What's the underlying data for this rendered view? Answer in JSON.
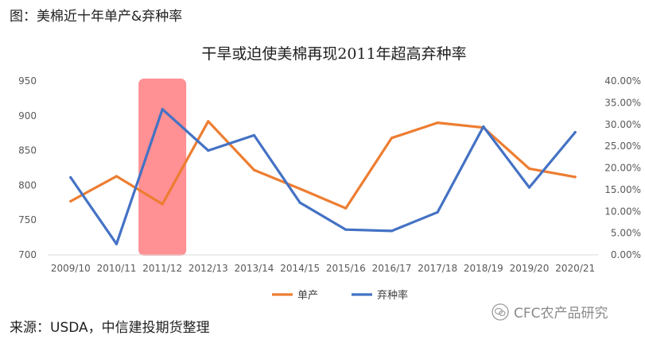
{
  "caption": "图：美棉近十年单产&弃种率",
  "source": "来源：USDA，中信建投期货整理",
  "watermark": "CFC农产品研究",
  "chart_data": {
    "type": "line",
    "title": "干旱或迫使美棉再现2011年超高弃种率",
    "categories": [
      "2009/10",
      "2010/11",
      "2011/12",
      "2012/13",
      "2013/14",
      "2014/15",
      "2015/16",
      "2016/17",
      "2017/18",
      "2018/19",
      "2019/20",
      "2020/21"
    ],
    "y_left": {
      "min": 700,
      "max": 950,
      "ticks": [
        700,
        750,
        800,
        850,
        900,
        950
      ]
    },
    "y_right": {
      "min": 0,
      "max": 0.4,
      "ticks": [
        "0.00%",
        "5.00%",
        "10.00%",
        "15.00%",
        "20.00%",
        "25.00%",
        "30.00%",
        "35.00%",
        "40.00%"
      ]
    },
    "series": [
      {
        "name": "单产",
        "axis": "left",
        "color": "#ED7D31",
        "values": [
          777,
          813,
          773,
          892,
          822,
          795,
          767,
          868,
          890,
          883,
          824,
          812
        ]
      },
      {
        "name": "弃种率",
        "axis": "right",
        "color": "#4472C4",
        "values": [
          0.178,
          0.025,
          0.335,
          0.24,
          0.275,
          0.12,
          0.058,
          0.055,
          0.098,
          0.295,
          0.155,
          0.282
        ]
      }
    ],
    "highlight": {
      "category": "2011/12",
      "color": "#FF7C80"
    },
    "legend_position": "bottom",
    "grid": false
  }
}
